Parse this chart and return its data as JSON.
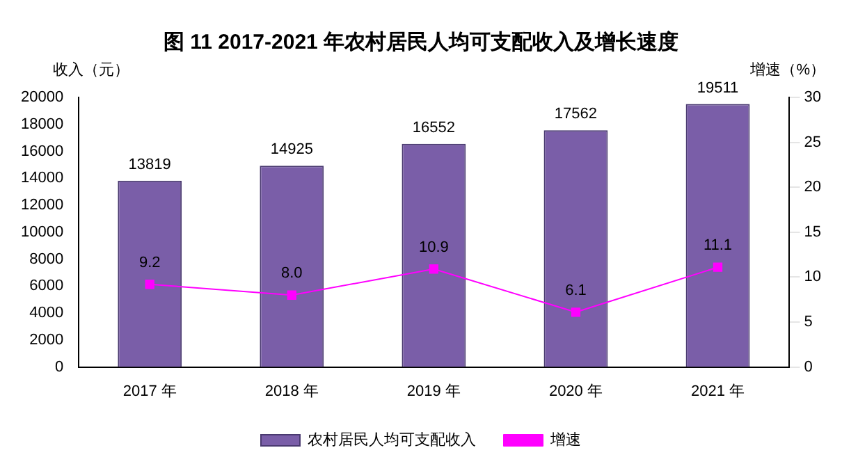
{
  "chart_data": {
    "type": "bar",
    "title": "图 11 2017-2021 年农村居民人均可支配收入及增长速度",
    "ylabel": "收入（元）",
    "y2label": "增速（%）",
    "categories": [
      "2017 年",
      "2018 年",
      "2019 年",
      "2020 年",
      "2021 年"
    ],
    "series": [
      {
        "name": "农村居民人均可支配收入",
        "color": "#7a5ea8",
        "values": [
          13819,
          14925,
          16552,
          17562,
          19511
        ]
      },
      {
        "name": "增速",
        "type": "line",
        "axis": "y2",
        "color": "#ff00ff",
        "marker": "square",
        "values": [
          9.2,
          8.0,
          10.9,
          6.1,
          11.1
        ],
        "value_labels": [
          "9.2",
          "8.0",
          "10.9",
          "6.1",
          "11.1"
        ]
      }
    ],
    "data_labels": true,
    "ylim": [
      0,
      20000
    ],
    "yticks": [
      0,
      2000,
      4000,
      6000,
      8000,
      10000,
      12000,
      14000,
      16000,
      18000,
      20000
    ],
    "y2lim": [
      0,
      30
    ],
    "y2ticks": [
      0,
      5,
      10,
      15,
      20,
      25,
      30
    ],
    "grid": false,
    "legend": "bottom"
  }
}
